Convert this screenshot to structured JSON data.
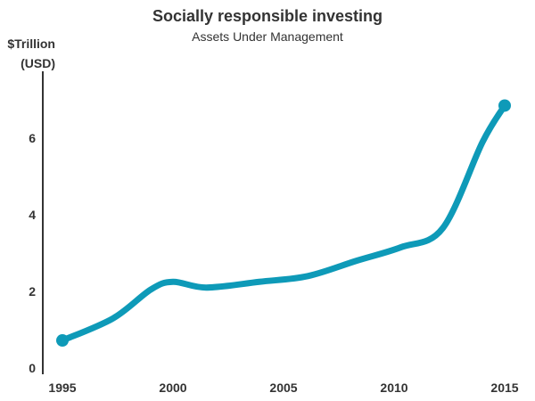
{
  "chart_data": {
    "type": "line",
    "title": "Socially responsible investing",
    "subtitle": "Assets Under Management",
    "ylabel_line1": "$Trillion",
    "ylabel_line2": "(USD)",
    "xlabel": "",
    "x_ticks": [
      "1995",
      "2000",
      "2005",
      "2010",
      "2015"
    ],
    "y_ticks": [
      "0",
      "2",
      "4",
      "6"
    ],
    "xlim": [
      1995,
      2015
    ],
    "ylim": [
      0,
      7.8
    ],
    "grid": false,
    "color": "#0e9ab8",
    "series": [
      {
        "name": "Assets Under Management",
        "x": [
          1995,
          1997.3,
          1999,
          2000,
          2001.5,
          2003.9,
          2006.1,
          2008.3,
          2010.3,
          2012.2,
          2014,
          2015
        ],
        "y": [
          0.72,
          1.3,
          2.05,
          2.25,
          2.1,
          2.25,
          2.4,
          2.8,
          3.15,
          3.65,
          5.9,
          6.85
        ]
      }
    ]
  }
}
